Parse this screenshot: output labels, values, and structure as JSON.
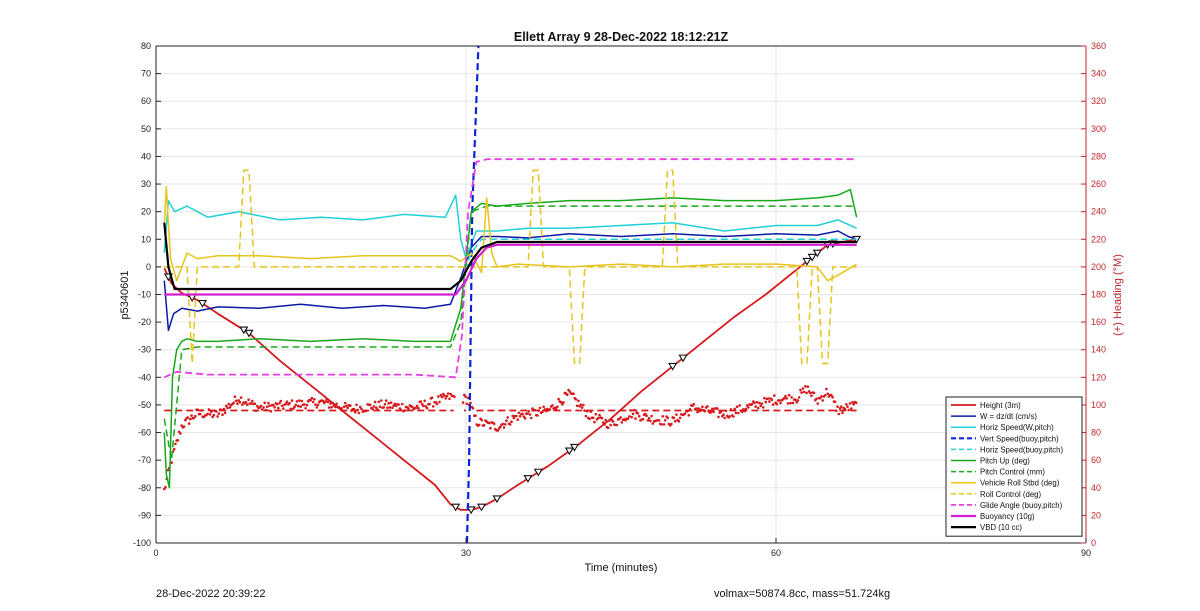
{
  "chart_data": {
    "type": "line",
    "title": "Ellett Array 9 28-Dec-2022 18:12:21Z",
    "xlabel": "Time (minutes)",
    "ylabel": "p5340601",
    "y2label": "(+) Heading (°M)",
    "xlim": [
      0,
      90
    ],
    "ylim": [
      -100,
      80
    ],
    "y2lim": [
      0,
      360
    ],
    "xticks": [
      0,
      30,
      60,
      90
    ],
    "yticks": [
      -100,
      -90,
      -80,
      -70,
      -60,
      -50,
      -40,
      -30,
      -20,
      -10,
      0,
      10,
      20,
      30,
      40,
      50,
      60,
      70,
      80
    ],
    "y2ticks": [
      0,
      20,
      40,
      60,
      80,
      100,
      120,
      140,
      160,
      180,
      200,
      220,
      240,
      260,
      280,
      300,
      320,
      340,
      360
    ],
    "grid": true,
    "legend_position": "bottom-right",
    "colors": {
      "axis_right": "#c0262b",
      "grid": "#e6e6e6"
    },
    "series": [
      {
        "name": "Height (3m)",
        "color": "#d7191c",
        "style": "solid",
        "width": 1.8,
        "x": [
          0.8,
          1.5,
          2.5,
          4,
          6,
          9,
          12,
          15,
          18,
          21,
          24,
          27,
          28.5,
          29.5,
          30.5,
          31.5,
          33,
          35,
          38,
          41,
          44,
          47,
          50,
          53,
          56,
          59,
          62,
          65,
          67.8
        ],
        "y": [
          -0.5,
          -6,
          -9.5,
          -12,
          -17,
          -24,
          -34,
          -43,
          -52,
          -61,
          -70,
          -79,
          -86,
          -88,
          -88,
          -87,
          -84,
          -79,
          -72,
          -64,
          -55,
          -45,
          -36,
          -27,
          -18,
          -10,
          -1,
          8,
          10
        ],
        "markers": {
          "symbol": "triangle",
          "x": [
            1.2,
            3.5,
            4.5,
            8.5,
            9,
            29,
            30.5,
            31.5,
            33,
            36,
            37,
            40,
            40.5,
            50,
            51,
            63,
            63.5,
            64,
            65,
            65.5,
            67.8
          ]
        }
      },
      {
        "name": "W = dz/dt (cm/s)",
        "color": "#0a1aa6",
        "style": "solid",
        "width": 1.5,
        "x": [
          0.8,
          1.2,
          1.7,
          2.5,
          4,
          6,
          10,
          14,
          18,
          22,
          26,
          28.5,
          29.5,
          30.5,
          31.5,
          33,
          36,
          40,
          45,
          50,
          55,
          60,
          64,
          66,
          67,
          67.8
        ],
        "y": [
          -5,
          -23,
          -17,
          -15,
          -16,
          -14.5,
          -15,
          -13.5,
          -15,
          -14,
          -15,
          -13.5,
          -4,
          7,
          11,
          11,
          10.5,
          12,
          11,
          12,
          11,
          12,
          11.5,
          13,
          11,
          10
        ]
      },
      {
        "name": "Horiz Speed(W,pitch)",
        "color": "#22d0d8",
        "style": "solid",
        "width": 1.5,
        "x": [
          0.8,
          1.2,
          1.8,
          3,
          5,
          8,
          12,
          16,
          20,
          24,
          28,
          29,
          29.5,
          30,
          31,
          33,
          36,
          40,
          45,
          50,
          55,
          60,
          64,
          66,
          67.8
        ],
        "y": [
          5,
          24,
          20,
          22,
          18,
          20,
          17,
          18,
          17,
          19,
          18,
          26,
          10,
          3,
          13,
          13,
          14,
          14,
          15,
          16,
          13,
          15,
          15,
          17,
          14
        ]
      },
      {
        "name": "Vert Speed(buoy,pitch)",
        "color": "#0b24d8",
        "style": "dashed",
        "width": 2.2,
        "x": [
          30.1,
          30.3,
          30.6,
          31.2
        ],
        "y": [
          -100,
          -70,
          20,
          80
        ]
      },
      {
        "name": "Horiz Speed(buoy,pitch)",
        "color": "#22d0d8",
        "style": "dashed",
        "width": 1.5,
        "x": [
          29.5,
          30.5,
          31.5,
          40,
          50,
          60,
          67.8
        ],
        "y": [
          -5,
          5,
          10,
          10,
          10,
          10,
          10
        ]
      },
      {
        "name": "Pitch Up (deg)",
        "color": "#17a81d",
        "style": "solid",
        "width": 1.5,
        "x": [
          0.8,
          1.0,
          1.3,
          1.6,
          2.0,
          2.5,
          3,
          4,
          6,
          10,
          15,
          20,
          25,
          28.5,
          29.5,
          30.5,
          31.5,
          33,
          36,
          40,
          45,
          50,
          55,
          60,
          64,
          66,
          67.2,
          67.8
        ],
        "y": [
          -60,
          -75,
          -80,
          -40,
          -30,
          -27,
          -26,
          -27,
          -27,
          -26,
          -27,
          -26,
          -27,
          -27,
          -15,
          20,
          23,
          22,
          23,
          24,
          24,
          25,
          24,
          24,
          25,
          26,
          28,
          18
        ]
      },
      {
        "name": "Pitch Control (mm)",
        "color": "#17a81d",
        "style": "dashed",
        "width": 1.5,
        "x": [
          0.8,
          1.5,
          2.5,
          4,
          10,
          20,
          28.5,
          29.5,
          30.5,
          32,
          40,
          50,
          60,
          67.8
        ],
        "y": [
          -55,
          -70,
          -30,
          -29,
          -29,
          -29,
          -29,
          -20,
          20,
          22,
          22,
          22,
          22,
          22
        ]
      },
      {
        "name": "Vehicle Roll Stbd (deg)",
        "color": "#e6c41e",
        "style": "solid",
        "width": 1.5,
        "x": [
          0.8,
          1.0,
          1.4,
          2,
          3,
          4,
          6,
          10,
          15,
          20,
          25,
          28.5,
          29.5,
          30.5,
          31.5,
          32,
          32.5,
          33,
          35,
          40,
          45,
          50,
          55,
          60,
          64,
          65,
          66,
          67.8
        ],
        "y": [
          15,
          29,
          3,
          -5,
          5,
          3,
          4,
          4,
          3,
          4,
          4,
          4,
          2,
          5,
          -2,
          25,
          5,
          0,
          1,
          0,
          1,
          0,
          1,
          1,
          0,
          -5,
          -3,
          1
        ]
      },
      {
        "name": "Roll Control (deg)",
        "color": "#e6c41e",
        "style": "dashed",
        "width": 1.5,
        "x": [
          0.8,
          2,
          3,
          3.5,
          4,
          8,
          8.5,
          9,
          9.5,
          29,
          30,
          31,
          32,
          36,
          36.5,
          37,
          37.5,
          40,
          40.5,
          41,
          41.5,
          49,
          49.5,
          50,
          50.5,
          62,
          62.5,
          63,
          63.5,
          64,
          64.5,
          65,
          65.5,
          67.8
        ],
        "y": [
          0,
          0,
          0,
          -35,
          0,
          0,
          35,
          35,
          0,
          0,
          0,
          0,
          0,
          0,
          35,
          35,
          0,
          0,
          -35,
          -35,
          0,
          0,
          35,
          35,
          0,
          0,
          -35,
          -35,
          0,
          0,
          -35,
          -35,
          0,
          0
        ]
      },
      {
        "name": "Glide Angle (buoy,pitch)",
        "color": "#e83de0",
        "style": "dashed",
        "width": 1.8,
        "x": [
          0.8,
          2,
          5,
          10,
          15,
          20,
          25,
          29,
          29.6,
          30.2,
          31,
          32,
          35,
          40,
          45,
          50,
          55,
          60,
          65,
          67.8
        ],
        "y": [
          -40,
          -38,
          -39,
          -39,
          -39,
          -39,
          -39,
          -40,
          -25,
          20,
          38,
          39,
          39,
          39,
          39,
          39,
          39,
          39,
          39,
          39
        ]
      },
      {
        "name": "Buoyancy (10g)",
        "color": "#d21ed1",
        "style": "solid",
        "width": 2.2,
        "x": [
          0.8,
          2,
          10,
          20,
          29,
          30,
          31,
          32,
          33,
          40,
          50,
          60,
          67.8
        ],
        "y": [
          -10,
          -10,
          -10,
          -10,
          -10,
          -5,
          3,
          7,
          8,
          8,
          8,
          8,
          8
        ]
      },
      {
        "name": "VBD (10 cc)",
        "color": "#000000",
        "style": "solid",
        "width": 2.2,
        "x": [
          0.8,
          1.2,
          1.8,
          3,
          10,
          20,
          28.5,
          29.5,
          30.5,
          31.5,
          33,
          40,
          50,
          60,
          67.8
        ],
        "y": [
          16,
          0,
          -8,
          -8,
          -8,
          -8,
          -8,
          -5,
          2,
          7,
          9,
          9,
          9,
          9,
          9
        ]
      }
    ],
    "heading": {
      "target_deg": 96,
      "target_color": "#d7191c",
      "dot_color": "#d7191c",
      "segments_min": [
        [
          0.8,
          28.8
        ],
        [
          29.8,
          30.0
        ],
        [
          31.0,
          67.8
        ]
      ],
      "waypoints": [
        [
          0.8,
          38
        ],
        [
          1.5,
          60
        ],
        [
          2.5,
          85
        ],
        [
          4,
          94
        ],
        [
          6,
          93
        ],
        [
          8,
          105
        ],
        [
          10,
          98
        ],
        [
          13,
          100
        ],
        [
          16,
          102
        ],
        [
          19,
          97
        ],
        [
          22,
          100
        ],
        [
          25,
          98
        ],
        [
          28.5,
          106
        ],
        [
          30.2,
          104
        ],
        [
          31,
          88
        ],
        [
          33,
          84
        ],
        [
          35,
          92
        ],
        [
          38,
          96
        ],
        [
          40,
          108
        ],
        [
          42,
          92
        ],
        [
          44,
          86
        ],
        [
          46,
          94
        ],
        [
          48,
          90
        ],
        [
          50,
          88
        ],
        [
          52,
          98
        ],
        [
          55,
          93
        ],
        [
          58,
          100
        ],
        [
          60,
          104
        ],
        [
          62,
          105
        ],
        [
          63,
          112
        ],
        [
          64,
          103
        ],
        [
          65,
          110
        ],
        [
          66,
          96
        ],
        [
          67.8,
          100
        ]
      ]
    }
  },
  "footer": {
    "left": "28-Dec-2022 20:39:22",
    "right": "volmax=50874.8cc, mass=51.724kg"
  }
}
